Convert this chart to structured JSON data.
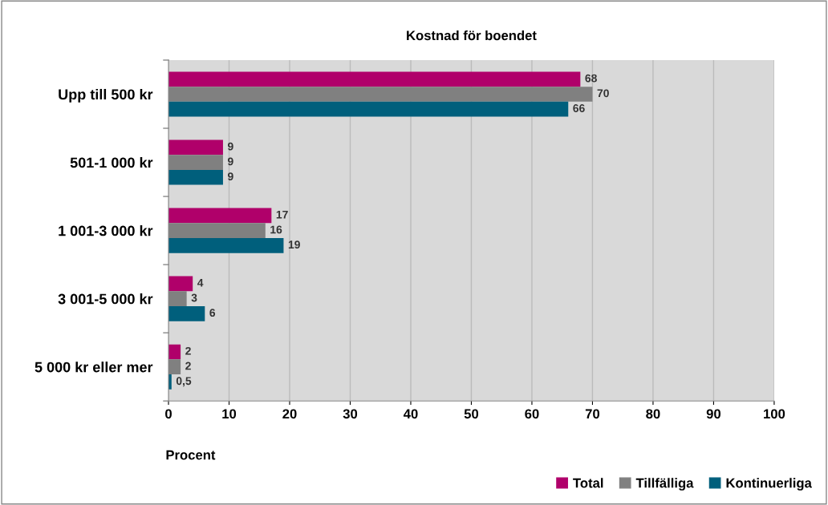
{
  "chart_data": {
    "type": "bar",
    "orientation": "horizontal",
    "title": "Kostnad för boendet",
    "xlabel": "Procent",
    "categories": [
      "Upp till 500 kr",
      "501-1 000 kr",
      "1 001-3 000 kr",
      "3 001-5 000 kr",
      "5 000 kr eller mer"
    ],
    "series": [
      {
        "name": "Total",
        "color": "#b0006a",
        "values": [
          68,
          9,
          17,
          4,
          2
        ],
        "value_labels": [
          "68",
          "9",
          "17",
          "4",
          "2"
        ]
      },
      {
        "name": "Tillfälliga",
        "color": "#808080",
        "values": [
          70,
          9,
          16,
          3,
          2
        ],
        "value_labels": [
          "70",
          "9",
          "16",
          "3",
          "2"
        ]
      },
      {
        "name": "Kontinuerliga",
        "color": "#005f7c",
        "values": [
          66,
          9,
          19,
          6,
          0.5
        ],
        "value_labels": [
          "66",
          "9",
          "19",
          "6",
          "0,5"
        ]
      }
    ],
    "xlim": [
      0,
      100
    ],
    "xticks": [
      0,
      10,
      20,
      30,
      40,
      50,
      60,
      70,
      80,
      90,
      100
    ],
    "grid": "x",
    "legend": "bottom right"
  }
}
